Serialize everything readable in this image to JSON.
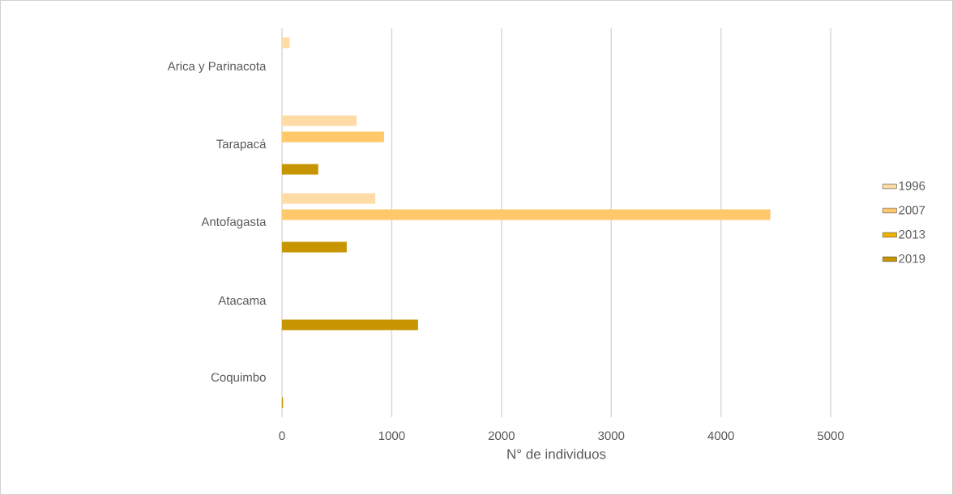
{
  "chart_data": {
    "type": "bar",
    "orientation": "horizontal",
    "xlabel": "N° de individuos",
    "categories": [
      "Arica y Parinacota",
      "Tarapacá",
      "Antofagasta",
      "Atacama",
      "Coquimbo"
    ],
    "series": [
      {
        "name": "1996",
        "color": "#ffdba6",
        "values": [
          70,
          680,
          850,
          null,
          null
        ]
      },
      {
        "name": "2007",
        "color": "#ffc86a",
        "values": [
          null,
          930,
          4450,
          null,
          null
        ]
      },
      {
        "name": "2013",
        "color": "#efb200",
        "values": [
          null,
          null,
          null,
          null,
          null
        ]
      },
      {
        "name": "2019",
        "color": "#c79500",
        "values": [
          null,
          330,
          590,
          1240,
          10
        ]
      }
    ],
    "xlim": [
      0,
      5000
    ],
    "xticks": [
      0,
      1000,
      2000,
      3000,
      4000,
      5000
    ],
    "grid": "x",
    "legend": "right"
  }
}
